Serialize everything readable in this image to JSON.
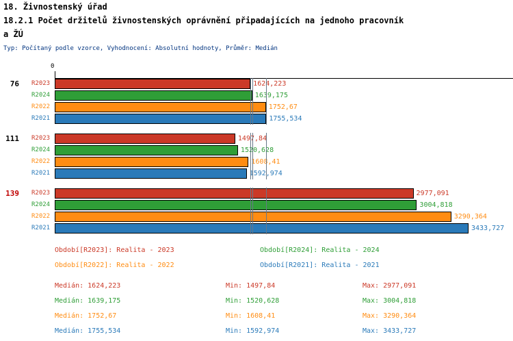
{
  "header": {
    "title": "18. Živnostenský úřad",
    "subtitle_lines": [
      "18.2.1 Počet držitelů živnostenských oprávnění připadajících na jednoho pracovník",
      "a ŽÚ"
    ],
    "meta": "Typ: Počítaný podle vzorce, Vyhodnocení: Absolutní hodnoty, Průměr: Medián"
  },
  "chart_data": {
    "type": "bar",
    "orientation": "horizontal",
    "title": "18.2.1 Počet držitelů živnostenských oprávnění připadajících na jednoho pracovníka ŽÚ",
    "x_origin_label": "0",
    "xmax": 3433.727,
    "grid": false,
    "series_order": [
      "R2023",
      "R2024",
      "R2022",
      "R2021"
    ],
    "series_colors": {
      "R2023": "#cb3927",
      "R2024": "#2f9e37",
      "R2022": "#ff8c12",
      "R2021": "#2a7ab9"
    },
    "median_values": [
      1624.223,
      1639.175,
      1752.67,
      1755.534
    ],
    "groups": [
      {
        "label": "76",
        "label_color": "#000000",
        "values": [
          1624.223,
          1639.175,
          1752.67,
          1755.534
        ],
        "value_labels": [
          "1624,223",
          "1639,175",
          "1752,67",
          "1755,534"
        ]
      },
      {
        "label": "111",
        "label_color": "#000000",
        "values": [
          1497.84,
          1520.628,
          1608.41,
          1592.974
        ],
        "value_labels": [
          "1497,84",
          "1520,628",
          "1608,41",
          "1592,974"
        ]
      },
      {
        "label": "139",
        "label_color": "#c00000",
        "values": [
          2977.091,
          3004.818,
          3290.364,
          3433.727
        ],
        "value_labels": [
          "2977,091",
          "3004,818",
          "3290,364",
          "3433,727"
        ]
      }
    ]
  },
  "legend": {
    "items": [
      {
        "text": "Období[R2023]: Realita - 2023",
        "series": "R2023",
        "col": 0,
        "row": 0
      },
      {
        "text": "Období[R2024]: Realita - 2024",
        "series": "R2024",
        "col": 1,
        "row": 0
      },
      {
        "text": "Období[R2022]: Realita - 2022",
        "series": "R2022",
        "col": 0,
        "row": 1
      },
      {
        "text": "Období[R2021]: Realita - 2021",
        "series": "R2021",
        "col": 1,
        "row": 1
      }
    ]
  },
  "stats": {
    "rows": [
      {
        "series": "R2023",
        "median": "Medián: 1624,223",
        "min": "Min: 1497,84",
        "max": "Max: 2977,091"
      },
      {
        "series": "R2024",
        "median": "Medián: 1639,175",
        "min": "Min: 1520,628",
        "max": "Max: 3004,818"
      },
      {
        "series": "R2022",
        "median": "Medián: 1752,67",
        "min": "Min: 1608,41",
        "max": "Max: 3290,364"
      },
      {
        "series": "R2021",
        "median": "Medián: 1755,534",
        "min": "Min: 1592,974",
        "max": "Max: 3433,727"
      }
    ]
  }
}
